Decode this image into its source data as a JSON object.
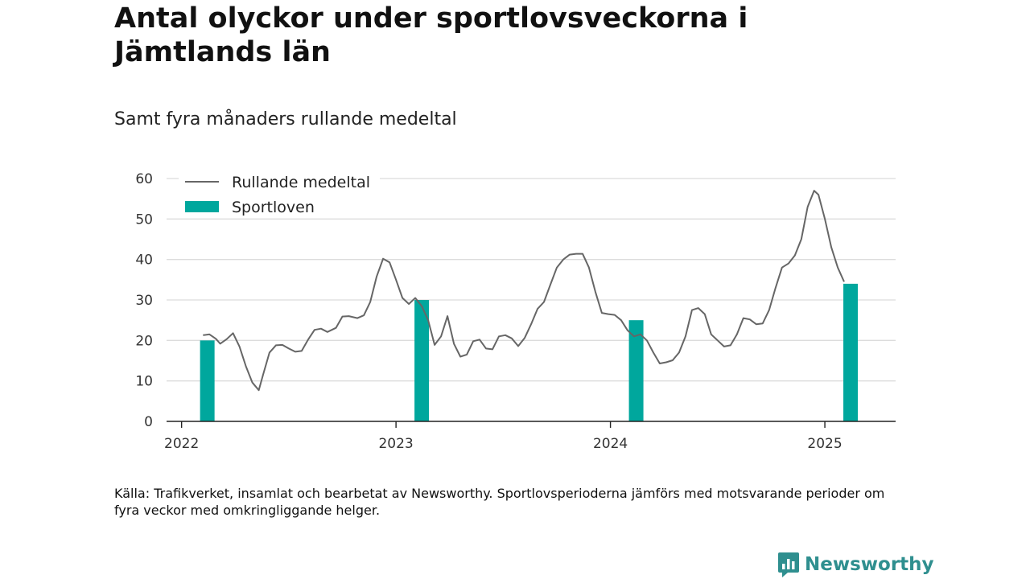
{
  "title": "Antal olyckor under sportlovsveckorna i Jämtlands län",
  "subtitle": "Samt fyra månaders rullande medeltal",
  "source": "Källa: Trafikverket, insamlat och bearbetat av Newsworthy. Sportlovsperioderna jämförs med motsvarande perioder om fyra veckor med omkringliggande helger.",
  "brand": {
    "name": "Newsworthy",
    "icon": "newsworthy-logo-icon",
    "color": "#2f8f8f"
  },
  "chart_data": {
    "type": "bar+line",
    "ylim": [
      0,
      60
    ],
    "yticks": [
      0,
      10,
      20,
      30,
      40,
      50,
      60
    ],
    "xlim": [
      2021.93,
      2025.33
    ],
    "xticks": [
      {
        "value": 2022,
        "label": "2022"
      },
      {
        "value": 2023,
        "label": "2023"
      },
      {
        "value": 2024,
        "label": "2024"
      },
      {
        "value": 2025,
        "label": "2025"
      }
    ],
    "grid": true,
    "legend": {
      "position": "top-left",
      "entries": [
        {
          "label": "Rullande medeltal",
          "kind": "line",
          "color": "#666666"
        },
        {
          "label": "Sportloven",
          "kind": "bar",
          "color": "#00a79d"
        }
      ]
    },
    "series": [
      {
        "name": "Sportloven",
        "kind": "bar",
        "color": "#00a79d",
        "x": [
          2022.12,
          2023.12,
          2024.12,
          2025.12
        ],
        "values": [
          20,
          30,
          25,
          34
        ]
      },
      {
        "name": "Rullande medeltal",
        "kind": "line",
        "color": "#666666",
        "x": [
          2022.1,
          2022.13,
          2022.16,
          2022.18,
          2022.21,
          2022.24,
          2022.27,
          2022.3,
          2022.33,
          2022.36,
          2022.38,
          2022.41,
          2022.44,
          2022.47,
          2022.5,
          2022.53,
          2022.56,
          2022.59,
          2022.62,
          2022.65,
          2022.68,
          2022.72,
          2022.75,
          2022.78,
          2022.82,
          2022.85,
          2022.88,
          2022.91,
          2022.94,
          2022.97,
          2023.0,
          2023.03,
          2023.06,
          2023.09,
          2023.12,
          2023.15,
          2023.18,
          2023.21,
          2023.24,
          2023.27,
          2023.3,
          2023.33,
          2023.36,
          2023.39,
          2023.42,
          2023.45,
          2023.48,
          2023.51,
          2023.54,
          2023.57,
          2023.6,
          2023.63,
          2023.66,
          2023.69,
          2023.72,
          2023.75,
          2023.78,
          2023.81,
          2023.84,
          2023.87,
          2023.9,
          2023.93,
          2023.96,
          2023.99,
          2024.02,
          2024.05,
          2024.08,
          2024.11,
          2024.14,
          2024.17,
          2024.2,
          2024.23,
          2024.26,
          2024.29,
          2024.32,
          2024.35,
          2024.38,
          2024.41,
          2024.44,
          2024.47,
          2024.5,
          2024.53,
          2024.56,
          2024.59,
          2024.62,
          2024.65,
          2024.68,
          2024.71,
          2024.74,
          2024.77,
          2024.8,
          2024.83,
          2024.86,
          2024.89,
          2024.92,
          2024.95,
          2024.97,
          2025.0,
          2025.03,
          2025.06,
          2025.09
        ],
        "values": [
          21.3,
          21.5,
          20.4,
          19.2,
          20.3,
          21.8,
          18.5,
          13.6,
          9.6,
          7.7,
          11.5,
          17.0,
          18.8,
          18.9,
          18.0,
          17.2,
          17.4,
          20.2,
          22.6,
          22.9,
          22.1,
          23.1,
          25.9,
          26.0,
          25.5,
          26.2,
          29.5,
          35.8,
          40.2,
          39.3,
          35.0,
          30.5,
          29.0,
          30.5,
          28.5,
          25.0,
          18.9,
          21.0,
          26.0,
          19.2,
          16.0,
          16.5,
          19.8,
          20.2,
          18.0,
          17.8,
          21.0,
          21.3,
          20.5,
          18.6,
          20.6,
          24.0,
          27.8,
          29.5,
          33.8,
          38.0,
          40.0,
          41.2,
          41.4,
          41.4,
          38.0,
          32.0,
          26.8,
          26.5,
          26.3,
          25.0,
          22.5,
          21.0,
          21.5,
          20.0,
          17.0,
          14.3,
          14.6,
          15.1,
          17.0,
          21.0,
          27.5,
          28.0,
          26.5,
          21.5,
          20.0,
          18.5,
          18.8,
          21.5,
          25.5,
          25.2,
          24.0,
          24.2,
          27.5,
          33.0,
          38.0,
          39.0,
          41.0,
          45.0,
          53.0,
          57.0,
          56.0,
          50.0,
          43.0,
          38.0,
          34.5
        ]
      }
    ]
  }
}
